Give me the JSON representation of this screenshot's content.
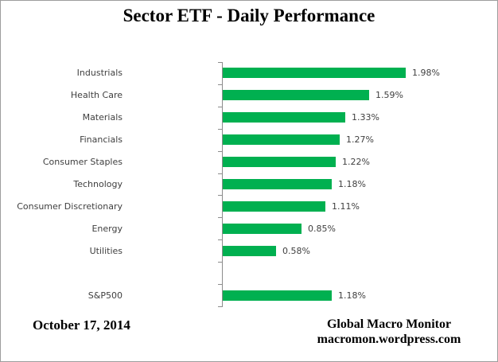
{
  "title": "Sector ETF - Daily Performance",
  "footer": {
    "date": "October 17, 2014",
    "source_line1": "Global Macro Monitor",
    "source_line2": "macromon.wordpress.com"
  },
  "colors": {
    "bar": "#00B050",
    "axis": "#8C8C8C",
    "category_text": "#3F3F3F",
    "value_text": "#3F3F3F",
    "title_text": "#000000",
    "border": "#9D9D9D"
  },
  "chart_data": {
    "type": "bar",
    "orientation": "horizontal",
    "title": "Sector ETF - Daily Performance",
    "categories": [
      "Industrials",
      "Health Care",
      "Materials",
      "Financials",
      "Consumer Staples",
      "Technology",
      "Consumer Discretionary",
      "Energy",
      "Utilities",
      "S&P500"
    ],
    "values": [
      1.98,
      1.59,
      1.33,
      1.27,
      1.22,
      1.18,
      1.11,
      0.85,
      0.58,
      1.18
    ],
    "data_labels": [
      "1.98%",
      "1.59%",
      "1.33%",
      "1.27%",
      "1.22%",
      "1.18%",
      "1.11%",
      "0.85%",
      "0.58%",
      "1.18%"
    ],
    "unit": "percent",
    "xlim": [
      0,
      2.2
    ],
    "separator_after_index": 8,
    "grid": false,
    "legend": false,
    "value_axis_labels_visible": false
  }
}
